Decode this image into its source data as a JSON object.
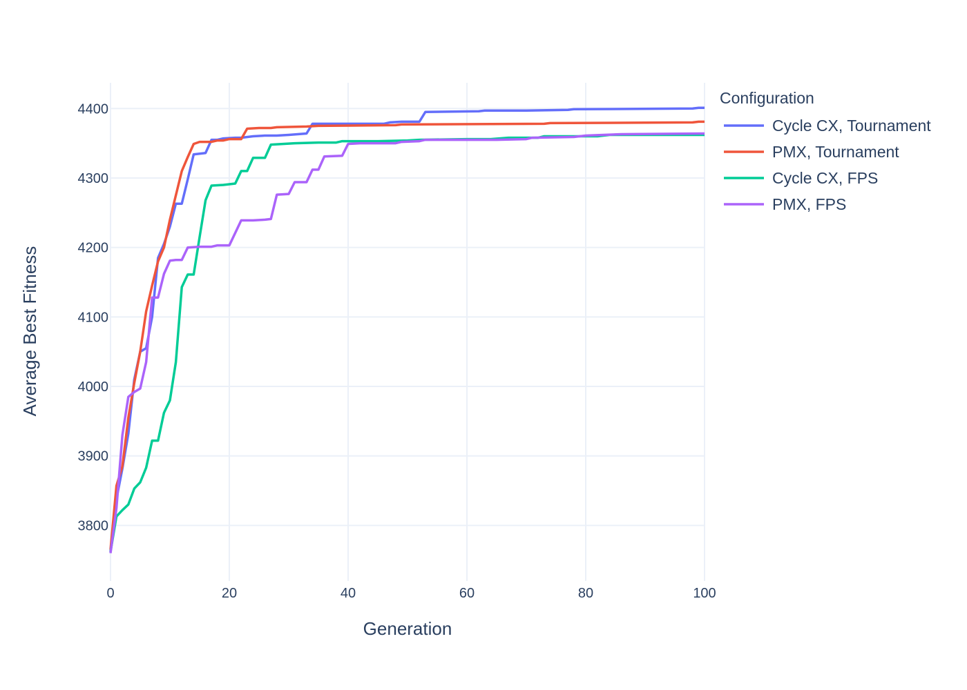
{
  "chart_data": {
    "type": "line",
    "xlabel": "Generation",
    "ylabel": "Average Best Fitness",
    "xlim": [
      0,
      100
    ],
    "ylim": [
      3720,
      4437
    ],
    "x_ticks": [
      0,
      20,
      40,
      60,
      80,
      100
    ],
    "y_ticks": [
      3800,
      3900,
      4000,
      4100,
      4200,
      4300,
      4400
    ],
    "grid": true,
    "legend_title": "Configuration",
    "legend_position": "right",
    "series": [
      {
        "name": "Cycle CX, Tournament",
        "color": "#636efa",
        "points": [
          [
            0,
            3762
          ],
          [
            1,
            3838
          ],
          [
            2,
            3882
          ],
          [
            3,
            3932
          ],
          [
            4,
            4010
          ],
          [
            5,
            4050
          ],
          [
            6,
            4055
          ],
          [
            7,
            4100
          ],
          [
            8,
            4185
          ],
          [
            9,
            4205
          ],
          [
            10,
            4230
          ],
          [
            11,
            4263
          ],
          [
            12,
            4263
          ],
          [
            13,
            4298
          ],
          [
            14,
            4334
          ],
          [
            16,
            4336
          ],
          [
            17,
            4355
          ],
          [
            18,
            4355
          ],
          [
            19,
            4357
          ],
          [
            21,
            4358
          ],
          [
            22,
            4358
          ],
          [
            24,
            4360
          ],
          [
            26,
            4361
          ],
          [
            28,
            4361
          ],
          [
            30,
            4362
          ],
          [
            33,
            4364
          ],
          [
            34,
            4378
          ],
          [
            40,
            4378
          ],
          [
            46,
            4378
          ],
          [
            47,
            4380
          ],
          [
            49,
            4381
          ],
          [
            52,
            4381
          ],
          [
            53,
            4395
          ],
          [
            62,
            4396
          ],
          [
            63,
            4397
          ],
          [
            70,
            4397
          ],
          [
            77,
            4398
          ],
          [
            78,
            4399
          ],
          [
            98,
            4400
          ],
          [
            99,
            4401
          ],
          [
            100,
            4401
          ]
        ]
      },
      {
        "name": "PMX, Tournament",
        "color": "#ef553b",
        "points": [
          [
            0,
            3765
          ],
          [
            1,
            3857
          ],
          [
            2,
            3885
          ],
          [
            3,
            3955
          ],
          [
            4,
            4005
          ],
          [
            5,
            4050
          ],
          [
            6,
            4108
          ],
          [
            7,
            4145
          ],
          [
            8,
            4180
          ],
          [
            9,
            4200
          ],
          [
            10,
            4240
          ],
          [
            11,
            4275
          ],
          [
            12,
            4310
          ],
          [
            13,
            4330
          ],
          [
            14,
            4349
          ],
          [
            15,
            4352
          ],
          [
            17,
            4352
          ],
          [
            18,
            4354
          ],
          [
            19,
            4354
          ],
          [
            20,
            4356
          ],
          [
            22,
            4356
          ],
          [
            23,
            4371
          ],
          [
            25,
            4372
          ],
          [
            27,
            4372
          ],
          [
            28,
            4373
          ],
          [
            33,
            4374
          ],
          [
            35,
            4375
          ],
          [
            48,
            4376
          ],
          [
            49,
            4377
          ],
          [
            73,
            4378
          ],
          [
            74,
            4379
          ],
          [
            98,
            4380
          ],
          [
            99,
            4381
          ],
          [
            100,
            4381
          ]
        ]
      },
      {
        "name": "Cycle CX, FPS",
        "color": "#00cc96",
        "points": [
          [
            0,
            3762
          ],
          [
            1,
            3813
          ],
          [
            2,
            3822
          ],
          [
            3,
            3830
          ],
          [
            4,
            3853
          ],
          [
            5,
            3862
          ],
          [
            6,
            3883
          ],
          [
            7,
            3922
          ],
          [
            8,
            3922
          ],
          [
            9,
            3962
          ],
          [
            10,
            3980
          ],
          [
            11,
            4035
          ],
          [
            12,
            4143
          ],
          [
            13,
            4161
          ],
          [
            14,
            4161
          ],
          [
            15,
            4215
          ],
          [
            16,
            4268
          ],
          [
            17,
            4289
          ],
          [
            19,
            4290
          ],
          [
            21,
            4292
          ],
          [
            22,
            4310
          ],
          [
            23,
            4310
          ],
          [
            24,
            4329
          ],
          [
            26,
            4329
          ],
          [
            27,
            4348
          ],
          [
            29,
            4349
          ],
          [
            31,
            4350
          ],
          [
            35,
            4351
          ],
          [
            38,
            4351
          ],
          [
            39,
            4353
          ],
          [
            45,
            4353
          ],
          [
            50,
            4354
          ],
          [
            52,
            4355
          ],
          [
            60,
            4356
          ],
          [
            64,
            4356
          ],
          [
            67,
            4358
          ],
          [
            72,
            4358
          ],
          [
            73,
            4360
          ],
          [
            82,
            4360
          ],
          [
            84,
            4362
          ],
          [
            100,
            4362
          ]
        ]
      },
      {
        "name": "PMX, FPS",
        "color": "#ab63fa",
        "points": [
          [
            0,
            3760
          ],
          [
            1,
            3825
          ],
          [
            2,
            3930
          ],
          [
            3,
            3985
          ],
          [
            4,
            3992
          ],
          [
            5,
            3997
          ],
          [
            6,
            4035
          ],
          [
            7,
            4128
          ],
          [
            8,
            4128
          ],
          [
            9,
            4162
          ],
          [
            10,
            4181
          ],
          [
            11,
            4182
          ],
          [
            12,
            4182
          ],
          [
            13,
            4200
          ],
          [
            15,
            4201
          ],
          [
            17,
            4201
          ],
          [
            18,
            4203
          ],
          [
            20,
            4203
          ],
          [
            22,
            4239
          ],
          [
            24,
            4239
          ],
          [
            26,
            4240
          ],
          [
            27,
            4241
          ],
          [
            28,
            4276
          ],
          [
            30,
            4277
          ],
          [
            31,
            4294
          ],
          [
            33,
            4294
          ],
          [
            34,
            4312
          ],
          [
            35,
            4312
          ],
          [
            36,
            4331
          ],
          [
            39,
            4332
          ],
          [
            40,
            4349
          ],
          [
            42,
            4350
          ],
          [
            48,
            4350
          ],
          [
            49,
            4352
          ],
          [
            52,
            4353
          ],
          [
            53,
            4355
          ],
          [
            60,
            4355
          ],
          [
            65,
            4355
          ],
          [
            70,
            4356
          ],
          [
            71,
            4358
          ],
          [
            78,
            4359
          ],
          [
            80,
            4361
          ],
          [
            86,
            4363
          ],
          [
            100,
            4364
          ]
        ]
      }
    ]
  }
}
